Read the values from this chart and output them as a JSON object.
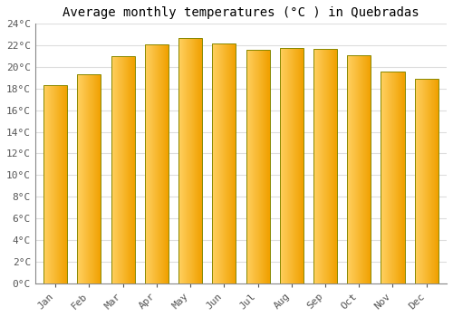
{
  "title": "Average monthly temperatures (°C ) in Quebradas",
  "months": [
    "Jan",
    "Feb",
    "Mar",
    "Apr",
    "May",
    "Jun",
    "Jul",
    "Aug",
    "Sep",
    "Oct",
    "Nov",
    "Dec"
  ],
  "temperatures": [
    18.3,
    19.3,
    21.0,
    22.1,
    22.7,
    22.2,
    21.6,
    21.8,
    21.7,
    21.1,
    19.6,
    18.9
  ],
  "bar_color_left": "#FFD060",
  "bar_color_right": "#F0A000",
  "bar_edge_color": "#888800",
  "ylim": [
    0,
    24
  ],
  "yticks": [
    0,
    2,
    4,
    6,
    8,
    10,
    12,
    14,
    16,
    18,
    20,
    22,
    24
  ],
  "ytick_labels": [
    "0°C",
    "2°C",
    "4°C",
    "6°C",
    "8°C",
    "10°C",
    "12°C",
    "14°C",
    "16°C",
    "18°C",
    "20°C",
    "22°C",
    "24°C"
  ],
  "background_color": "#FFFFFF",
  "grid_color": "#DDDDDD",
  "title_fontsize": 10,
  "tick_fontsize": 8,
  "font_family": "monospace",
  "bar_width": 0.7,
  "gradient_steps": 50
}
